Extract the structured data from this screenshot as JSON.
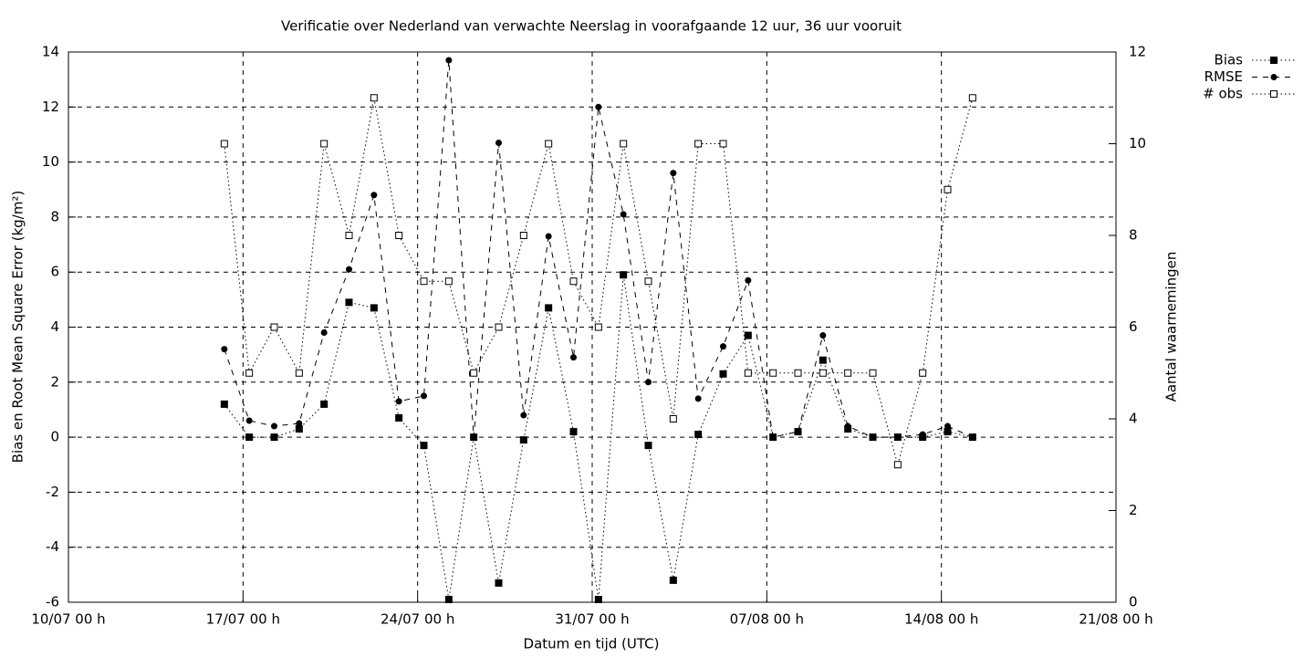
{
  "chart_data": {
    "type": "line",
    "title": "Verificatie over Nederland van verwachte Neerslag in voorafgaande 12 uur, 36 uur vooruit",
    "xlabel": "Datum en tijd (UTC)",
    "ylabel": "Bias en Root Mean Square Error (kg/m²)",
    "y2label": "Aantal waarnemingen",
    "x": [
      6.25,
      7.25,
      8.25,
      9.25,
      10.25,
      11.25,
      12.25,
      13.25,
      14.25,
      15.25,
      16.25,
      17.25,
      18.25,
      19.25,
      20.25,
      21.25,
      22.25,
      23.25,
      24.25,
      25.25,
      26.25,
      27.25,
      28.25,
      29.25,
      30.25,
      31.25,
      32.25,
      33.25,
      34.25,
      35.25,
      36.25
    ],
    "xlim": [
      0,
      42
    ],
    "xticks": [
      {
        "value": 0,
        "label": "10/07 00 h"
      },
      {
        "value": 7,
        "label": "17/07 00 h"
      },
      {
        "value": 14,
        "label": "24/07 00 h"
      },
      {
        "value": 21,
        "label": "31/07 00 h"
      },
      {
        "value": 28,
        "label": "07/08 00 h"
      },
      {
        "value": 35,
        "label": "14/08 00 h"
      },
      {
        "value": 42,
        "label": "21/08 00 h"
      }
    ],
    "ylim": [
      -6,
      14
    ],
    "yticks": [
      -6,
      -4,
      -2,
      0,
      2,
      4,
      6,
      8,
      10,
      12,
      14
    ],
    "y2lim": [
      0,
      12
    ],
    "y2ticks": [
      0,
      2,
      4,
      6,
      8,
      10,
      12
    ],
    "grid": true,
    "legend": "top-right",
    "series": [
      {
        "name": "Bias",
        "color": "#000000",
        "line": "dotted",
        "marker": "filled-square",
        "values": [
          1.2,
          0,
          0,
          0.3,
          1.2,
          4.9,
          4.7,
          0.7,
          -0.3,
          -5.9,
          0,
          -5.3,
          -0.1,
          4.7,
          0.2,
          -5.9,
          5.9,
          -0.3,
          -5.2,
          0.1,
          2.3,
          3.7,
          0,
          0.2,
          2.8,
          0.3,
          0,
          0,
          0,
          0.2,
          0
        ]
      },
      {
        "name": "RMSE",
        "color": "#000000",
        "line": "dashed",
        "marker": "filled-circle",
        "values": [
          3.2,
          0.6,
          0.4,
          0.5,
          3.8,
          6.1,
          8.8,
          1.3,
          1.5,
          13.7,
          0,
          10.7,
          0.8,
          7.3,
          2.9,
          12.0,
          8.1,
          2.0,
          9.6,
          1.4,
          3.3,
          5.7,
          0,
          0.2,
          3.7,
          0.4,
          0,
          0,
          0.1,
          0.4,
          0
        ]
      },
      {
        "name": "# obs",
        "color": "#000000",
        "line": "dotted",
        "marker": "open-square",
        "axis": "y2",
        "values": [
          10,
          5,
          6,
          5,
          10,
          8,
          11,
          8,
          7,
          7,
          5,
          6,
          8,
          10,
          7,
          6,
          10,
          7,
          4,
          10,
          10,
          5,
          5,
          5,
          5,
          5,
          5,
          3,
          5,
          9,
          11
        ]
      }
    ]
  }
}
